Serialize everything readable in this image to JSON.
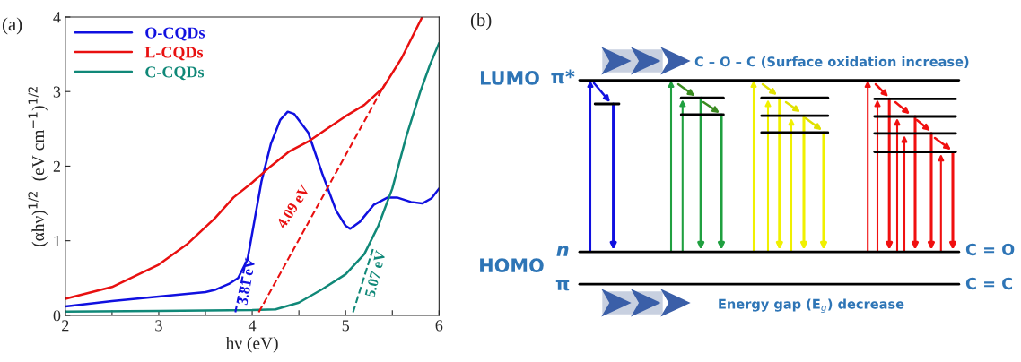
{
  "chart_data": [
    {
      "type": "line",
      "title": "(a)",
      "xlabel": "hν (eV)",
      "ylabel": "(αhν)$^{1/2}$  (eV cm$^{−1}$)$^{1/2}$",
      "xlim": [
        2,
        6
      ],
      "ylim": [
        0,
        4
      ],
      "xticks": [
        2,
        {
          "value": 2.5,
          "label": null
        },
        3,
        {
          "value": 3.5,
          "label": null
        },
        4,
        {
          "value": 4.5,
          "label": null
        },
        5,
        {
          "value": 5.5,
          "label": null
        },
        6
      ],
      "yticks": [
        0,
        1,
        2,
        3,
        4
      ],
      "grid": false,
      "legend": "top left",
      "series": [
        {
          "name": "O-CQDs",
          "color": "#1010e0",
          "x": [
            2,
            2.5,
            3,
            3.5,
            3.6,
            3.75,
            3.85,
            3.95,
            4.0,
            4.1,
            4.2,
            4.3,
            4.38,
            4.45,
            4.6,
            4.75,
            4.9,
            5.0,
            5.05,
            5.15,
            5.3,
            5.45,
            5.55,
            5.7,
            5.82,
            5.92,
            6.0
          ],
          "values": [
            0.12,
            0.19,
            0.25,
            0.31,
            0.34,
            0.42,
            0.5,
            0.75,
            1.1,
            1.8,
            2.3,
            2.62,
            2.73,
            2.7,
            2.45,
            1.9,
            1.4,
            1.2,
            1.16,
            1.25,
            1.48,
            1.58,
            1.58,
            1.52,
            1.5,
            1.57,
            1.7
          ]
        },
        {
          "name": "L-CQDs",
          "color": "#e81010",
          "x": [
            2,
            2.5,
            3,
            3.3,
            3.6,
            3.8,
            4.0,
            4.2,
            4.4,
            4.6,
            4.8,
            5.0,
            5.2,
            5.4,
            5.6,
            5.82
          ],
          "values": [
            0.22,
            0.38,
            0.68,
            0.95,
            1.3,
            1.58,
            1.78,
            2.0,
            2.2,
            2.33,
            2.5,
            2.67,
            2.82,
            3.05,
            3.45,
            4.0
          ]
        },
        {
          "name": "C-CQDs",
          "color": "#108878",
          "x": [
            2,
            3,
            4,
            4.25,
            4.5,
            4.75,
            5.0,
            5.2,
            5.35,
            5.5,
            5.65,
            5.8,
            5.9,
            6.0
          ],
          "values": [
            0.05,
            0.06,
            0.07,
            0.08,
            0.17,
            0.35,
            0.55,
            0.82,
            1.2,
            1.7,
            2.4,
            3.0,
            3.35,
            3.65
          ]
        },
        {
          "type": "line",
          "line_style": "dashed",
          "color": "#1010e0",
          "x": [
            3.82,
            3.93
          ],
          "values": [
            0.04,
            0.72
          ]
        },
        {
          "type": "line",
          "line_style": "dashed",
          "color": "#e81010",
          "x": [
            4.07,
            5.42
          ],
          "values": [
            0.04,
            3.1
          ]
        },
        {
          "type": "line",
          "line_style": "dashed",
          "color": "#108878",
          "x": [
            5.08,
            5.3
          ],
          "values": [
            0.04,
            0.92
          ]
        }
      ],
      "annotations": [
        "3.81 eV",
        "4.09 eV",
        "5.07 eV"
      ]
    },
    {
      "type": "other",
      "title": "(b)",
      "annotations": [
        "C – O – C (Surface oxidation increase)",
        "LUMO",
        "π*",
        "HOMO",
        "n",
        "π",
        "C = O",
        "C = C",
        "Energy gap (E$_{g}$) decrease"
      ]
    }
  ]
}
